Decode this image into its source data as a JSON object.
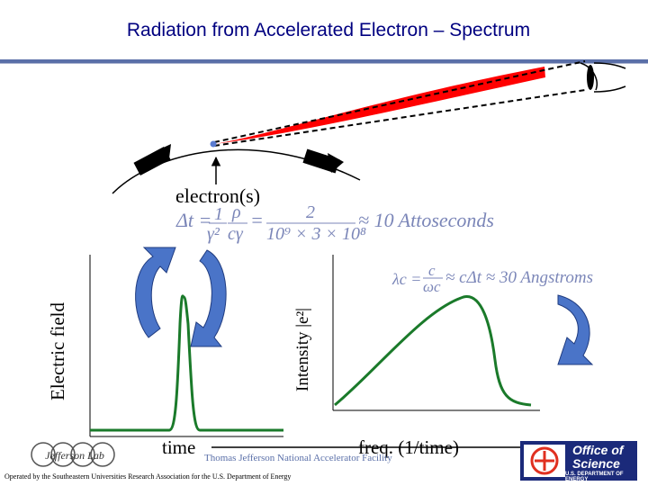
{
  "slide": {
    "title": "Radiation from Accelerated Electron – Spectrum"
  },
  "diagram": {
    "electron_label": "electron(s)",
    "left_plot": {
      "ylabel": "Electric field",
      "xlabel": "time"
    },
    "right_plot": {
      "ylabel": "Intensity |e²|",
      "xlabel": "freq. (1/time)"
    },
    "equation_time": {
      "lhs": "Δt =",
      "frac1_num": "1",
      "frac1_den": "γ²",
      "frac2_num": "ρ",
      "frac2_den": "cγ",
      "eq": "=",
      "frac3_num": "2",
      "frac3_den": "10⁹ × 3 × 10⁸",
      "result": "≈ 10 Attoseconds"
    },
    "equation_wavelength": {
      "lhs": "λc =",
      "frac_num": "c",
      "frac_den": "ωc",
      "result": "≈ cΔt ≈ 30 Angstroms"
    },
    "colors": {
      "beam": "#ff0000",
      "curve": "#1a7a2a",
      "arrow": "#4a74c8",
      "title": "#000080",
      "equation": "#7b86b8"
    }
  },
  "footer": {
    "lab_name": "Thomas Jefferson National Accelerator Facility",
    "operated_by": "Operated by the Southeastern Universities Research Association for the U.S. Department of Energy",
    "logo_left": "Jefferson Lab",
    "logo_right_line1": "Office of",
    "logo_right_line2": "Science",
    "logo_right_line3": "U.S. DEPARTMENT OF ENERGY"
  }
}
